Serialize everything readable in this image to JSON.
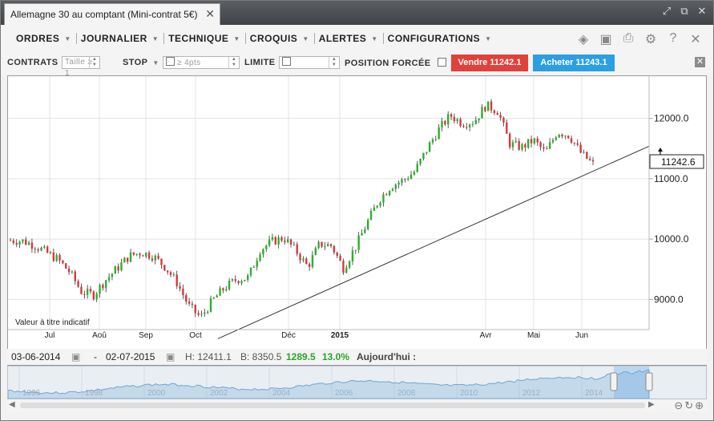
{
  "window": {
    "title": "Allemagne 30 au comptant (Mini-contrat 5€)"
  },
  "menu": {
    "items": [
      "ORDRES",
      "JOURNALIER",
      "TECHNIQUE",
      "CROQUIS",
      "ALERTES",
      "CONFIGURATIONS"
    ]
  },
  "toolbar_icons": [
    "layers-icon",
    "image-icon",
    "print-icon",
    "gear-icon",
    "help-icon",
    "close-icon"
  ],
  "order_bar": {
    "contracts_label": "CONTRATS",
    "size_placeholder": "Taille ≥ 1",
    "stop_label": "STOP",
    "stop_placeholder": "≥ 4pts",
    "limit_label": "LIMITE",
    "forced_label": "POSITION FORCÉE",
    "sell_label": "Vendre 11242.1",
    "buy_label": "Acheter 11243.1"
  },
  "chart_data": {
    "type": "candlestick",
    "title": "",
    "x_tick_labels": [
      "Jul",
      "Aoû",
      "Sep",
      "Oct",
      "Déc",
      "2015",
      "Avr",
      "Mai",
      "Jun"
    ],
    "y_tick_labels": [
      "12000.0",
      "11000.0",
      "10000.0",
      "9000.0"
    ],
    "ylim": [
      8500,
      12700
    ],
    "current_price_label": "11242.6",
    "annotation": "Valeur à titre indicatif",
    "series": [
      {
        "name": "",
        "weekly_close": [
          9980,
          9970,
          9900,
          9780,
          9660,
          9450,
          9120,
          9080,
          9320,
          9520,
          9720,
          9780,
          9720,
          9540,
          9280,
          8890,
          8700,
          8980,
          9190,
          9330,
          9360,
          9820,
          9960,
          10020,
          9810,
          9540,
          9920,
          9890,
          9520,
          9860,
          10270,
          10650,
          10880,
          10970,
          11120,
          11480,
          11810,
          12050,
          11920,
          11950,
          12220,
          12120,
          11580,
          11520,
          11640,
          11430,
          11780,
          11720,
          11420,
          11240
        ]
      }
    ],
    "trendline": {
      "from": {
        "date": "2014-10-16",
        "value": 8350
      },
      "to": {
        "date": "2015-07-02",
        "value": 11540
      }
    }
  },
  "info_bar": {
    "start_date": "03-06-2014",
    "dash": "-",
    "end_date": "02-07-2015",
    "high": "H: 12411.1",
    "low": "B: 8350.5",
    "change": "1289.5",
    "change_pct": "13.0%",
    "today_label": "Aujourd'hui :"
  },
  "navigator": {
    "years": [
      "1996",
      "1998",
      "2000",
      "2002",
      "2004",
      "2006",
      "2008",
      "2010",
      "2012",
      "2014"
    ]
  },
  "colors": {
    "up": "#2eae2e",
    "down": "#d93838",
    "sell": "#e0413a",
    "buy": "#2b9fe0",
    "positive": "#2aa52a"
  }
}
